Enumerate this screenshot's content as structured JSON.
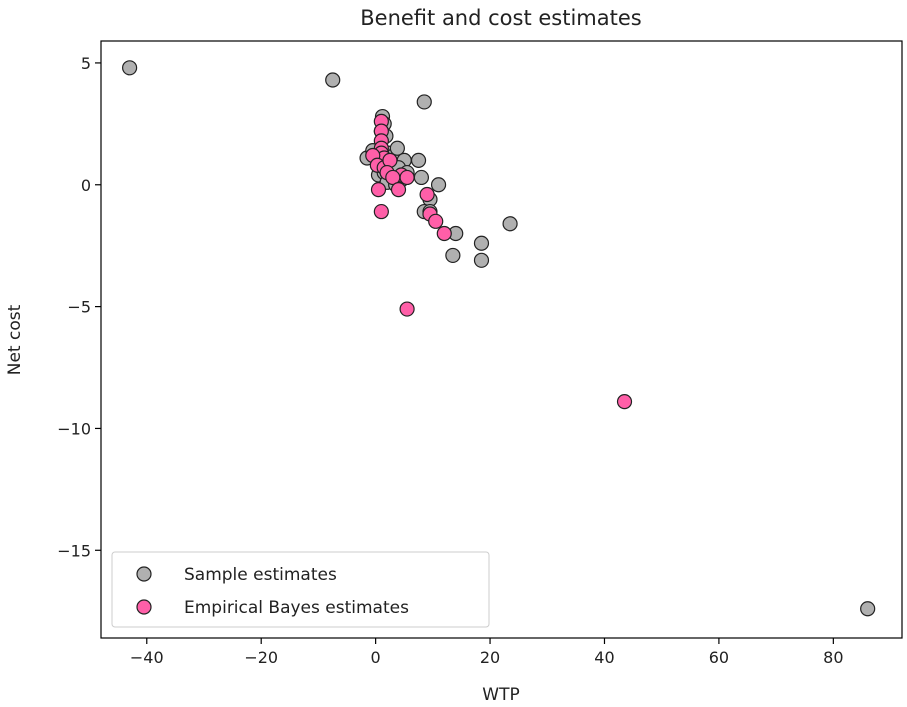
{
  "chart_data": {
    "type": "scatter",
    "title": "Benefit and cost estimates",
    "xlabel": "WTP",
    "ylabel": "Net cost",
    "xlim": [
      -48,
      92
    ],
    "ylim": [
      -18.6,
      5.9
    ],
    "xticks": [
      -40,
      -20,
      0,
      20,
      40,
      60,
      80
    ],
    "yticks": [
      -15,
      -10,
      -5,
      0,
      5
    ],
    "xtick_labels": [
      "−40",
      "−20",
      "0",
      "20",
      "40",
      "60",
      "80"
    ],
    "ytick_labels": [
      "−15",
      "−10",
      "−5",
      "0",
      "5"
    ],
    "grid": false,
    "legend": "lower-left",
    "series": [
      {
        "name": "Sample estimates",
        "color": "#b0b0b0",
        "points": [
          [
            -43,
            4.8
          ],
          [
            -7.5,
            4.3
          ],
          [
            8.5,
            3.4
          ],
          [
            1.2,
            2.8
          ],
          [
            1.5,
            2.5
          ],
          [
            1.0,
            2.2
          ],
          [
            1.8,
            2.0
          ],
          [
            -1.5,
            1.1
          ],
          [
            -0.5,
            1.4
          ],
          [
            0.3,
            1.0
          ],
          [
            0.8,
            1.2
          ],
          [
            1.5,
            1.0
          ],
          [
            2.2,
            1.3
          ],
          [
            3.2,
            1.2
          ],
          [
            3.8,
            1.5
          ],
          [
            5.0,
            1.0
          ],
          [
            7.5,
            1.0
          ],
          [
            0.5,
            0.4
          ],
          [
            1.5,
            0.5
          ],
          [
            2.8,
            0.6
          ],
          [
            4.0,
            0.7
          ],
          [
            5.5,
            0.5
          ],
          [
            8.0,
            0.3
          ],
          [
            11.0,
            0.0
          ],
          [
            2.0,
            0.1
          ],
          [
            3.5,
            0.0
          ],
          [
            4.5,
            0.2
          ],
          [
            9.5,
            -0.6
          ],
          [
            8.5,
            -1.1
          ],
          [
            9.5,
            -1.1
          ],
          [
            14.0,
            -2.0
          ],
          [
            18.5,
            -2.4
          ],
          [
            23.5,
            -1.6
          ],
          [
            13.5,
            -2.9
          ],
          [
            18.5,
            -3.1
          ],
          [
            86,
            -17.4
          ]
        ]
      },
      {
        "name": "Empirical Bayes estimates",
        "color": "#ff5fa8",
        "points": [
          [
            1.0,
            2.6
          ],
          [
            1.0,
            2.2
          ],
          [
            1.0,
            1.8
          ],
          [
            1.0,
            1.5
          ],
          [
            1.0,
            1.3
          ],
          [
            1.5,
            1.1
          ],
          [
            -0.5,
            1.2
          ],
          [
            0.3,
            0.8
          ],
          [
            1.5,
            0.7
          ],
          [
            2.5,
            1.0
          ],
          [
            2.0,
            0.5
          ],
          [
            4.5,
            0.4
          ],
          [
            3.0,
            0.3
          ],
          [
            5.5,
            0.3
          ],
          [
            0.5,
            -0.2
          ],
          [
            4.0,
            -0.2
          ],
          [
            9.0,
            -0.4
          ],
          [
            1.0,
            -1.1
          ],
          [
            9.5,
            -1.2
          ],
          [
            10.5,
            -1.5
          ],
          [
            12.0,
            -2.0
          ],
          [
            5.5,
            -5.1
          ],
          [
            43.5,
            -8.9
          ]
        ]
      }
    ]
  }
}
